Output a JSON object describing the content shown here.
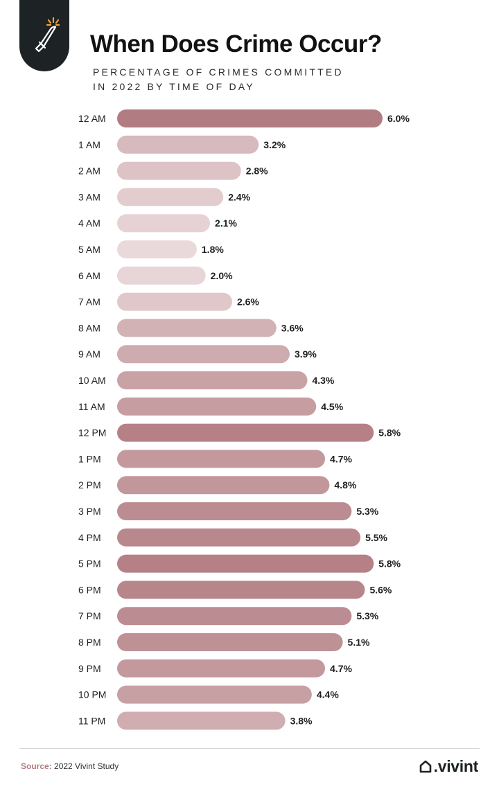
{
  "header": {
    "title": "When Does Crime Occur?",
    "subtitle_line1": "PERCENTAGE OF CRIMES COMMITTED",
    "subtitle_line2": "IN 2022 BY TIME OF DAY",
    "icon": "knife-icon"
  },
  "chart_data": {
    "type": "bar",
    "orientation": "horizontal",
    "title": "When Does Crime Occur?",
    "subtitle": "PERCENTAGE OF CRIMES COMMITTED IN 2022 BY TIME OF DAY",
    "categories": [
      "12 AM",
      "1 AM",
      "2 AM",
      "3 AM",
      "4 AM",
      "5 AM",
      "6 AM",
      "7 AM",
      "8 AM",
      "9 AM",
      "10 AM",
      "11 AM",
      "12 PM",
      "1 PM",
      "2 PM",
      "3 PM",
      "4 PM",
      "5 PM",
      "6 PM",
      "7 PM",
      "8 PM",
      "9 PM",
      "10 PM",
      "11 PM"
    ],
    "values": [
      6.0,
      3.2,
      2.8,
      2.4,
      2.1,
      1.8,
      2.0,
      2.6,
      3.6,
      3.9,
      4.3,
      4.5,
      5.8,
      4.7,
      4.8,
      5.3,
      5.5,
      5.8,
      5.6,
      5.3,
      5.1,
      4.7,
      4.4,
      3.8
    ],
    "value_labels": [
      "6.0%",
      "3.2%",
      "2.8%",
      "2.4%",
      "2.1%",
      "1.8%",
      "2.0%",
      "2.6%",
      "3.6%",
      "3.9%",
      "4.3%",
      "4.5%",
      "5.8%",
      "4.7%",
      "4.8%",
      "5.3%",
      "5.5%",
      "5.8%",
      "5.6%",
      "5.3%",
      "5.1%",
      "4.7%",
      "4.4%",
      "3.8%"
    ],
    "xlabel": "",
    "ylabel": "",
    "xlim": [
      0,
      6.0
    ],
    "grid": false,
    "legend": "none",
    "color_low": "#ead9db",
    "color_high": "#b27d82"
  },
  "footer": {
    "source_label": "Source:",
    "source_text": "2022 Vivint Study",
    "brand": ".vivint",
    "brand_icon": "home-icon"
  },
  "colors": {
    "badge": "#1d2225",
    "accent": "#b07d80",
    "bar_light": "#ead9db",
    "bar_dark": "#b27d82"
  }
}
